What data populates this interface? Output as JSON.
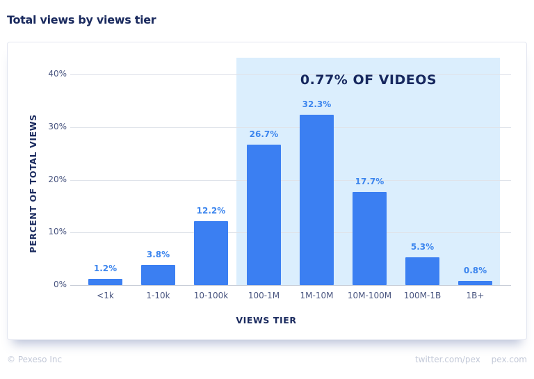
{
  "header": {
    "title": "Total views by views tier"
  },
  "footer": {
    "copyright": "© Pexeso Inc",
    "links": [
      "twitter.com/pex",
      "pex.com"
    ]
  },
  "colors": {
    "bar": "#3b7ff2",
    "bar_label": "#3d86ee",
    "highlight": "#dbeefd",
    "title": "#1a2a5e"
  },
  "chart_data": {
    "type": "bar",
    "title": "Total views by views tier",
    "xlabel": "VIEWS TIER",
    "ylabel": "PERCENT OF TOTAL VIEWS",
    "categories": [
      "<1k",
      "1-10k",
      "10-100k",
      "100-1M",
      "1M-10M",
      "10M-100M",
      "100M-1B",
      "1B+"
    ],
    "values": [
      1.2,
      3.8,
      12.2,
      26.7,
      32.3,
      17.7,
      5.3,
      0.8
    ],
    "value_labels": [
      "1.2%",
      "3.8%",
      "12.2%",
      "26.7%",
      "32.3%",
      "17.7%",
      "5.3%",
      "0.8%"
    ],
    "ylim": [
      0,
      40
    ],
    "yticks": [
      "0%",
      "10%",
      "20%",
      "30%",
      "40%"
    ],
    "grid": true,
    "legend": null,
    "annotations": [
      {
        "text": "0.77% OF VIDEOS",
        "span_categories": [
          "100-1M",
          "1B+"
        ],
        "type": "shaded-region"
      }
    ]
  }
}
